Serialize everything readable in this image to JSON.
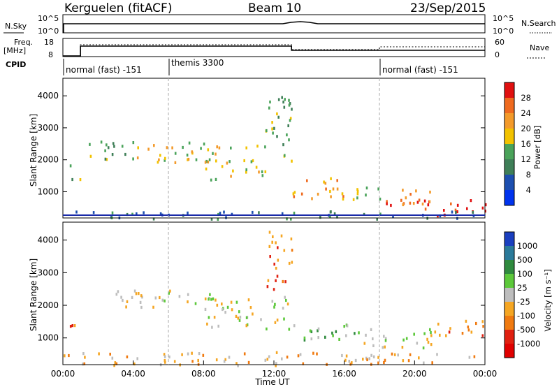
{
  "header": {
    "station": "Kerguelen (fitACF)",
    "beam": "Beam 10",
    "date": "23/Sep/2015"
  },
  "top_panels": {
    "nsky_label": "N.Sky",
    "nsearch_label": "N.Search",
    "nsky_ticks": [
      "10^5",
      "10^0"
    ],
    "nsearch_ticks": [
      "10^5",
      "10^0"
    ],
    "freq_label_1": "Freq.",
    "freq_label_2": "[MHz]",
    "freq_ticks": [
      "18",
      "8"
    ],
    "nave_label": "Nave",
    "nave_ticks": [
      "60",
      "0"
    ],
    "cpid_label": "CPID"
  },
  "cpid_segments": [
    {
      "label": "normal (fast) -151",
      "start": 0,
      "end": 6
    },
    {
      "label": "themis 3300",
      "start": 6,
      "end": 18
    },
    {
      "label": "normal (fast) -151",
      "start": 18,
      "end": 24
    }
  ],
  "chart_data": [
    {
      "type": "heatmap",
      "title": "",
      "xlabel": "",
      "ylabel": "Slant Range [km]",
      "xlim": [
        0,
        24
      ],
      "ylim": [
        180,
        4550
      ],
      "x_unit": "hours UT",
      "yticks": [
        1000,
        2000,
        3000,
        4000
      ],
      "colorbar": {
        "label": "Power [dB]",
        "ticks": [
          4,
          8,
          12,
          16,
          20,
          24,
          28
        ],
        "range": [
          0,
          32
        ],
        "colors": [
          "#0033ee",
          "#1d4fb0",
          "#3f7f58",
          "#4aa35a",
          "#f2c200",
          "#f39a2a",
          "#ef6a1f",
          "#e01010"
        ]
      },
      "blobs": [
        {
          "t0": 0.2,
          "t1": 1.0,
          "r0": 1400,
          "r1": 1900,
          "level": 3
        },
        {
          "t0": 1.0,
          "t1": 4.0,
          "r0": 2000,
          "r1": 2600,
          "level": 3
        },
        {
          "t0": 4.0,
          "t1": 8.0,
          "r0": 1900,
          "r1": 2600,
          "level": 4
        },
        {
          "t0": 8.0,
          "t1": 11.5,
          "r0": 1400,
          "r1": 2500,
          "level": 4
        },
        {
          "t0": 11.5,
          "t1": 13.0,
          "r0": 2000,
          "r1": 4300,
          "level": 3
        },
        {
          "t0": 13.0,
          "t1": 16.0,
          "r0": 800,
          "r1": 1500,
          "level": 5
        },
        {
          "t0": 15.5,
          "t1": 18.0,
          "r0": 700,
          "r1": 1200,
          "level": 4
        },
        {
          "t0": 18.0,
          "t1": 21.0,
          "r0": 600,
          "r1": 1300,
          "level": 6
        },
        {
          "t0": 20.0,
          "t1": 24.0,
          "r0": 250,
          "r1": 800,
          "level": 7
        },
        {
          "t0": 0.0,
          "t1": 24.0,
          "r0": 180,
          "r1": 420,
          "level": 2
        }
      ]
    },
    {
      "type": "heatmap",
      "title": "",
      "xlabel": "Time UT",
      "ylabel": "Slant Range [km]",
      "xlim": [
        0,
        24
      ],
      "ylim": [
        180,
        4550
      ],
      "x_unit": "hours UT",
      "xticks": [
        "00:00",
        "04:00",
        "08:00",
        "12:00",
        "16:00",
        "20:00",
        "00:00"
      ],
      "yticks": [
        1000,
        2000,
        3000,
        4000
      ],
      "colorbar": {
        "label": "Velocity  [m s⁻¹]",
        "ticks": [
          "1000",
          "500",
          "100",
          "25",
          "-25",
          "-100",
          "-500",
          "-1000"
        ],
        "colors": [
          "#1a3fbf",
          "#2a7a9a",
          "#2f8a3e",
          "#5cc83a",
          "#bdbdbd",
          "#f5a623",
          "#f07a10",
          "#e02010",
          "#e00000"
        ]
      },
      "blobs": [
        {
          "t0": 0.2,
          "t1": 1.0,
          "r0": 1400,
          "r1": 1900,
          "level": 6
        },
        {
          "t0": 3.0,
          "t1": 9.0,
          "r0": 1900,
          "r1": 2500,
          "level": 4
        },
        {
          "t0": 8.0,
          "t1": 13.0,
          "r0": 1300,
          "r1": 2300,
          "level": 4
        },
        {
          "t0": 11.5,
          "t1": 13.0,
          "r0": 2500,
          "r1": 4300,
          "level": 6
        },
        {
          "t0": 13.0,
          "t1": 17.0,
          "r0": 900,
          "r1": 1500,
          "level": 3
        },
        {
          "t0": 17.0,
          "t1": 21.0,
          "r0": 700,
          "r1": 1400,
          "level": 4
        },
        {
          "t0": 21.0,
          "t1": 24.0,
          "r0": 1100,
          "r1": 1700,
          "level": 6
        },
        {
          "t0": 0.0,
          "t1": 24.0,
          "r0": 180,
          "r1": 600,
          "level": 5
        }
      ]
    }
  ]
}
